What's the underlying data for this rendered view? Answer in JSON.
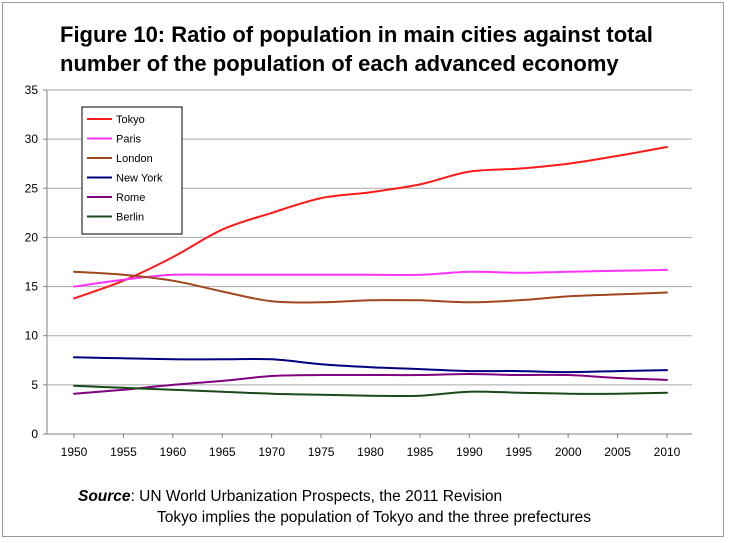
{
  "title": {
    "line1": "Figure 10: Ratio of population in main cities against total",
    "line2": "number of the population of each advanced economy"
  },
  "chart_data": {
    "type": "line",
    "title": "Figure 10: Ratio of population in main cities against total number of the population of each advanced economy",
    "xlabel": "",
    "ylabel": "",
    "x": [
      1950,
      1955,
      1960,
      1965,
      1970,
      1975,
      1980,
      1985,
      1990,
      1995,
      2000,
      2005,
      2010
    ],
    "x_tick_labels": [
      "1950",
      "1955",
      "1960",
      "1965",
      "1970",
      "1975",
      "1980",
      "1985",
      "1990",
      "1995",
      "2000",
      "2005",
      "2010"
    ],
    "ylim": [
      0,
      35
    ],
    "y_ticks": [
      0,
      5,
      10,
      15,
      20,
      25,
      30,
      35
    ],
    "grid": "horizontal",
    "legend_position": "top-left",
    "series": [
      {
        "name": "Tokyo",
        "color": "#ff1a1a",
        "values": [
          13.8,
          15.6,
          18.0,
          20.8,
          22.5,
          24.0,
          24.6,
          25.4,
          26.7,
          27.0,
          27.5,
          28.3,
          29.2
        ]
      },
      {
        "name": "Paris",
        "color": "#ff33ff",
        "values": [
          15.0,
          15.7,
          16.2,
          16.2,
          16.2,
          16.2,
          16.2,
          16.2,
          16.5,
          16.4,
          16.5,
          16.6,
          16.7
        ]
      },
      {
        "name": "London",
        "color": "#a0461e",
        "values": [
          16.5,
          16.2,
          15.6,
          14.5,
          13.5,
          13.4,
          13.6,
          13.6,
          13.4,
          13.6,
          14.0,
          14.2,
          14.4
        ]
      },
      {
        "name": "New York",
        "color": "#000080",
        "values": [
          7.8,
          7.7,
          7.6,
          7.6,
          7.6,
          7.1,
          6.8,
          6.6,
          6.4,
          6.4,
          6.3,
          6.4,
          6.5
        ]
      },
      {
        "name": "Rome",
        "color": "#800080",
        "values": [
          4.1,
          4.5,
          5.0,
          5.4,
          5.9,
          6.0,
          6.0,
          6.0,
          6.1,
          6.0,
          6.0,
          5.7,
          5.5
        ]
      },
      {
        "name": "Berlin",
        "color": "#1a4a1a",
        "values": [
          4.9,
          4.7,
          4.5,
          4.3,
          4.1,
          4.0,
          3.9,
          3.9,
          4.3,
          4.2,
          4.1,
          4.1,
          4.2
        ]
      }
    ]
  },
  "source": {
    "label": "Source",
    "separator": ":",
    "text": " UN World Urbanization Prospects, the 2011 Revision",
    "line2": "Tokyo implies the population of Tokyo and the three prefectures"
  }
}
